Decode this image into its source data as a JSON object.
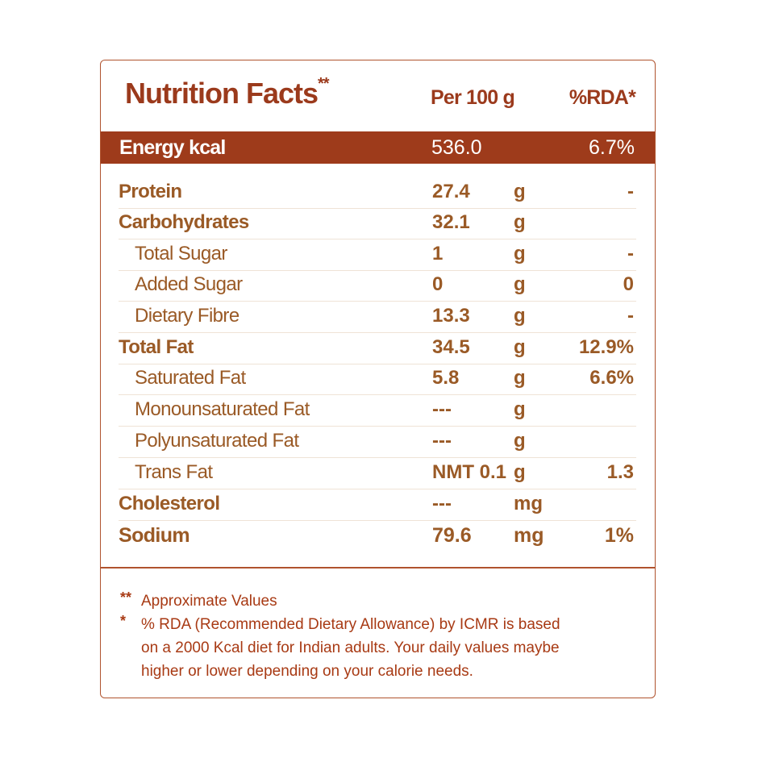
{
  "header": {
    "title": "Nutrition Facts",
    "title_mark": "**",
    "per_label": "Per 100 g",
    "rda_label": "%RDA*"
  },
  "energy": {
    "label": "Energy kcal",
    "value": "536.0",
    "rda": "6.7%"
  },
  "rows": [
    {
      "name": "Protein",
      "value": "27.4",
      "unit": "g",
      "rda": "-",
      "level": "main"
    },
    {
      "name": "Carbohydrates",
      "value": "32.1",
      "unit": "g",
      "rda": "",
      "level": "main"
    },
    {
      "name": "Total Sugar",
      "value": "1",
      "unit": "g",
      "rda": "-",
      "level": "sub"
    },
    {
      "name": "Added Sugar",
      "value": "0",
      "unit": "g",
      "rda": "0",
      "level": "sub"
    },
    {
      "name": "Dietary Fibre",
      "value": "13.3",
      "unit": "g",
      "rda": "-",
      "level": "sub"
    },
    {
      "name": "Total Fat",
      "value": "34.5",
      "unit": "g",
      "rda": "12.9%",
      "level": "main"
    },
    {
      "name": "Saturated Fat",
      "value": "5.8",
      "unit": "g",
      "rda": "6.6%",
      "level": "sub"
    },
    {
      "name": "Monounsaturated Fat",
      "value": "---",
      "unit": "g",
      "rda": "",
      "level": "sub"
    },
    {
      "name": "Polyunsaturated Fat",
      "value": "---",
      "unit": "g",
      "rda": "",
      "level": "sub"
    },
    {
      "name": "Trans Fat",
      "value": "NMT 0.1",
      "unit": "g",
      "rda": "1.3",
      "level": "sub"
    },
    {
      "name": "Cholesterol",
      "value": "---",
      "unit": "mg",
      "rda": "",
      "level": "main"
    },
    {
      "name": "Sodium",
      "value": "79.6",
      "unit": "mg",
      "rda": "1%",
      "level": "main"
    }
  ],
  "footnotes": [
    {
      "mark": "**",
      "lines": [
        "Approximate Values"
      ]
    },
    {
      "mark": "*",
      "lines": [
        "% RDA (Recommended Dietary Allowance) by ICMR is based",
        "on a 2000 Kcal diet for Indian adults. Your daily values maybe",
        "higher or lower depending on your calorie needs."
      ]
    }
  ],
  "colors": {
    "heading": "#9b3a1c",
    "band": "#9e3b1b",
    "body_text": "#9a5a26",
    "footnote": "#a83a14",
    "border": "#b0532e"
  }
}
